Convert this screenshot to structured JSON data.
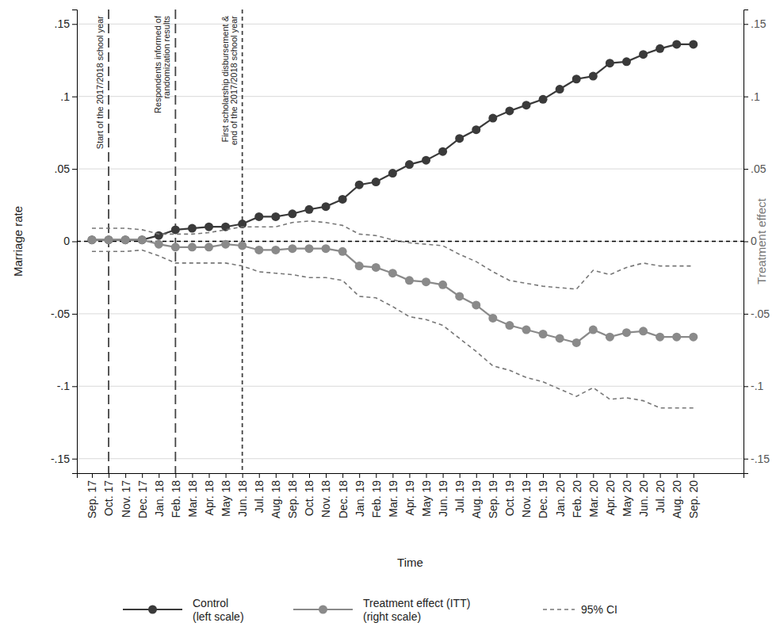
{
  "chart_data": {
    "type": "line",
    "x_label": "Time",
    "y_label": "Marriage rate",
    "y2_label": "Treatment effect",
    "categories": [
      "Sep. 17",
      "Oct. 17",
      "Nov. 17",
      "Dec. 17",
      "Jan. 18",
      "Feb. 18",
      "Mar. 18",
      "Apr. 18",
      "May 18",
      "Jun. 18",
      "Jul. 18",
      "Aug. 18",
      "Sep. 18",
      "Oct. 18",
      "Nov. 18",
      "Dec. 18",
      "Jan. 19",
      "Feb. 19",
      "Mar. 19",
      "Apr. 19",
      "May 19",
      "Jun. 19",
      "Jul. 19",
      "Aug. 19",
      "Sep. 19",
      "Oct. 19",
      "Nov. 19",
      "Dec. 19",
      "Jan. 20",
      "Feb. 20",
      "Mar. 20",
      "Apr. 20",
      "May 20",
      "Jun. 20",
      "Jul. 20",
      "Aug. 20",
      "Sep. 20"
    ],
    "ylim": [
      -0.16,
      0.16
    ],
    "yticks": [
      {
        "value": -0.15,
        "label": "-.15"
      },
      {
        "value": -0.1,
        "label": "-.1"
      },
      {
        "value": -0.05,
        "label": "-.05"
      },
      0,
      {
        "value": 0.05,
        "label": ".05"
      },
      {
        "value": 0.1,
        "label": ".1"
      },
      {
        "value": 0.15,
        "label": ".15"
      }
    ],
    "y2lim": [
      -0.16,
      0.16
    ],
    "y2ticks": [
      {
        "value": -0.15,
        "label": "-.15"
      },
      {
        "value": -0.1,
        "label": "-.1"
      },
      {
        "value": -0.05,
        "label": "-.05"
      },
      0,
      {
        "value": 0.05,
        "label": ".05"
      },
      {
        "value": 0.1,
        "label": ".1"
      },
      {
        "value": 0.15,
        "label": ".15"
      }
    ],
    "grid": true,
    "legend": "bottom",
    "reference_line": 0,
    "series": [
      {
        "name": "Control\n(left scale)",
        "color": "#3a3a3a",
        "marker": "circle",
        "axis": "y",
        "values": [
          0.001,
          0.001,
          0.001,
          0.001,
          0.004,
          0.008,
          0.009,
          0.01,
          0.01,
          0.012,
          0.017,
          0.017,
          0.019,
          0.022,
          0.024,
          0.029,
          0.039,
          0.041,
          0.047,
          0.053,
          0.056,
          0.062,
          0.071,
          0.077,
          0.085,
          0.09,
          0.094,
          0.098,
          0.105,
          0.112,
          0.114,
          0.123,
          0.124,
          0.129,
          0.133,
          0.136,
          0.136
        ]
      },
      {
        "name": "Treatment effect (ITT)\n(right scale)",
        "color": "#8a8a8a",
        "marker": "circle",
        "axis": "y2",
        "values": [
          0.001,
          0.001,
          0.001,
          0.001,
          -0.002,
          -0.004,
          -0.004,
          -0.004,
          -0.002,
          -0.003,
          -0.006,
          -0.006,
          -0.005,
          -0.005,
          -0.005,
          -0.007,
          -0.017,
          -0.018,
          -0.022,
          -0.027,
          -0.028,
          -0.03,
          -0.038,
          -0.044,
          -0.053,
          -0.058,
          -0.061,
          -0.064,
          -0.067,
          -0.07,
          -0.061,
          -0.066,
          -0.063,
          -0.062,
          -0.066,
          -0.066,
          -0.066
        ],
        "ci": {
          "name": "95% CI",
          "color": "#777777",
          "line_style": "dashed",
          "upper": [
            0.009,
            0.009,
            0.009,
            0.008,
            0.005,
            0.005,
            0.005,
            0.006,
            0.008,
            0.01,
            0.01,
            0.01,
            0.013,
            0.014,
            0.013,
            0.011,
            0.005,
            0.004,
            0.001,
            -0.001,
            -0.002,
            -0.003,
            -0.009,
            -0.014,
            -0.021,
            -0.027,
            -0.029,
            -0.031,
            -0.032,
            -0.033,
            -0.02,
            -0.023,
            -0.018,
            -0.015,
            -0.017,
            -0.017,
            -0.017
          ],
          "lower": [
            -0.007,
            -0.007,
            -0.007,
            -0.006,
            -0.01,
            -0.015,
            -0.015,
            -0.015,
            -0.015,
            -0.017,
            -0.021,
            -0.022,
            -0.023,
            -0.025,
            -0.025,
            -0.027,
            -0.038,
            -0.039,
            -0.045,
            -0.052,
            -0.054,
            -0.058,
            -0.067,
            -0.076,
            -0.086,
            -0.089,
            -0.094,
            -0.097,
            -0.102,
            -0.107,
            -0.101,
            -0.109,
            -0.108,
            -0.11,
            -0.115,
            -0.115,
            -0.115
          ]
        }
      }
    ],
    "annotations": [
      {
        "x": "Oct. 17",
        "text": [
          "Start of the 2017/2018 school year"
        ],
        "line_style": "longdash"
      },
      {
        "x": "Feb. 18",
        "text": [
          "Respondents informed of",
          "randomization results"
        ],
        "line_style": "longdash"
      },
      {
        "x": "Jun. 18",
        "text": [
          "First scholarship disbursement &",
          "end of the 2017/2018 school year"
        ],
        "line_style": "dashed"
      }
    ]
  }
}
